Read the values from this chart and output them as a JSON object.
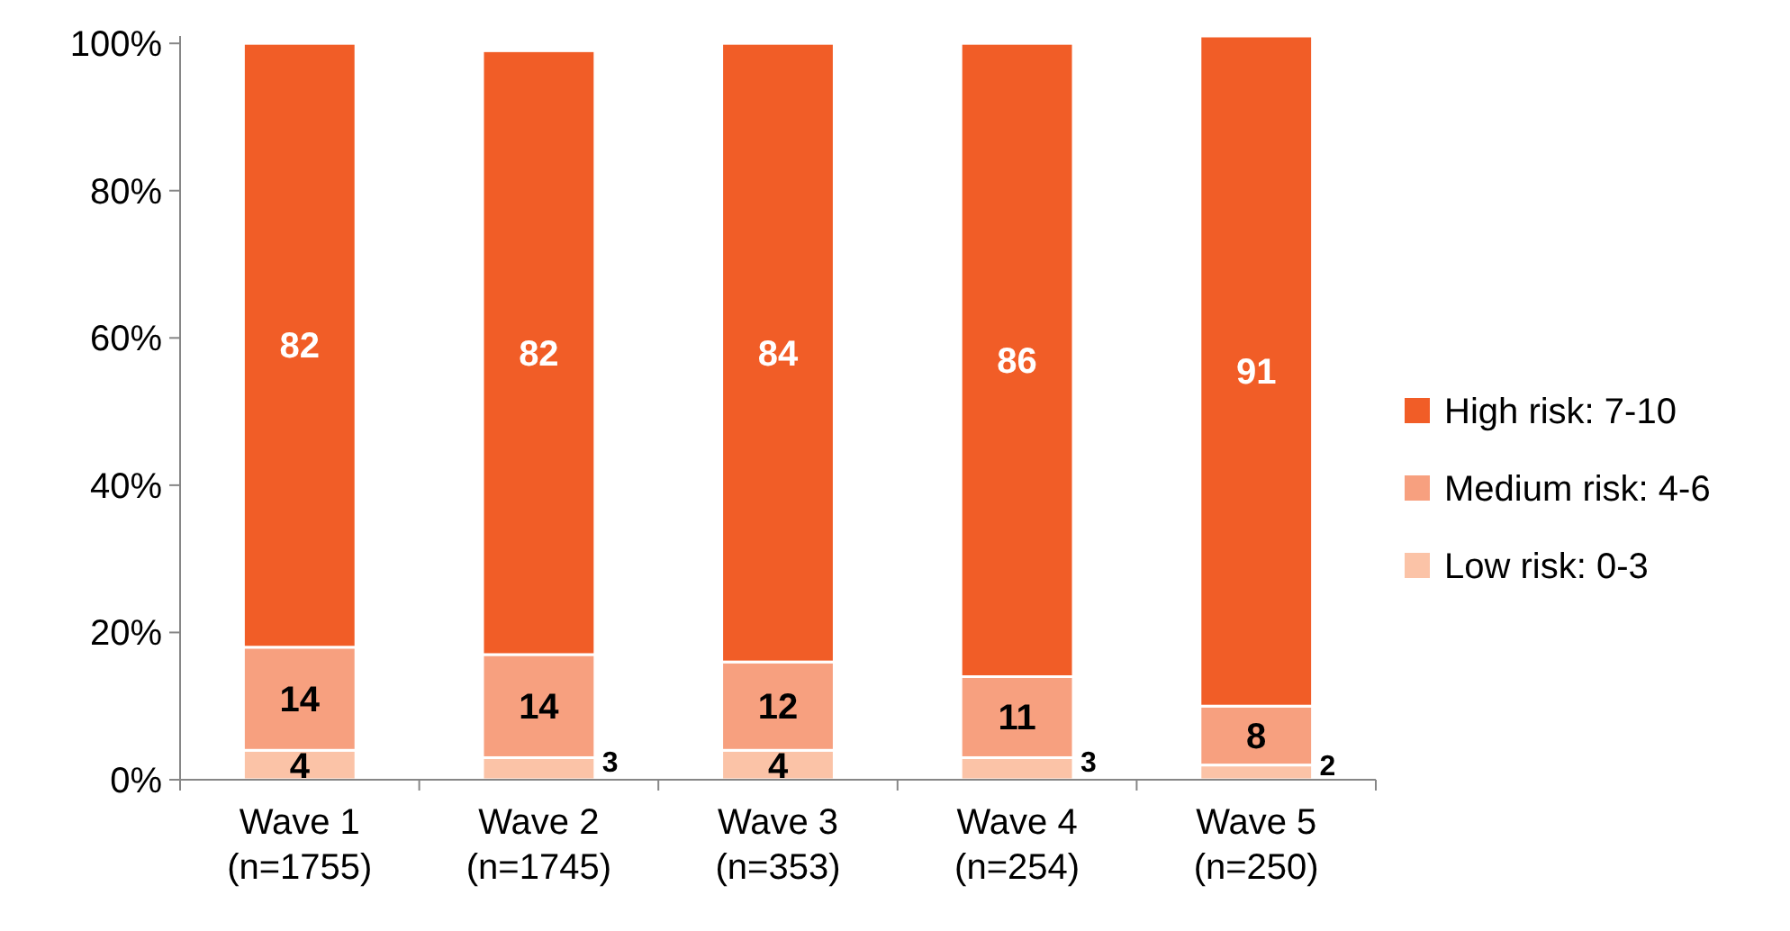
{
  "chart_data": {
    "type": "bar",
    "stacked": true,
    "categories": [
      "Wave 1\n(n=1755)",
      "Wave 2\n(n=1745)",
      "Wave 3\n(n=353)",
      "Wave 4\n(n=254)",
      "Wave 5\n(n=250)"
    ],
    "series": [
      {
        "name": "Low risk: 0-3",
        "color": "#fbc3a7",
        "values": [
          4,
          3,
          4,
          3,
          2
        ]
      },
      {
        "name": "Medium risk: 4-6",
        "color": "#f7a07f",
        "values": [
          14,
          14,
          12,
          11,
          8
        ]
      },
      {
        "name": "High risk: 7-10",
        "color": "#f15d27",
        "values": [
          82,
          82,
          84,
          86,
          91
        ]
      }
    ],
    "ylim": [
      0,
      101
    ],
    "yticks": [
      {
        "value": 0,
        "label": "0%"
      },
      {
        "value": 20,
        "label": "20%"
      },
      {
        "value": 40,
        "label": "40%"
      },
      {
        "value": 60,
        "label": "60%"
      },
      {
        "value": 80,
        "label": "80%"
      },
      {
        "value": 100,
        "label": "100%"
      }
    ],
    "data_labels": true,
    "legend": "right",
    "grid": false
  }
}
